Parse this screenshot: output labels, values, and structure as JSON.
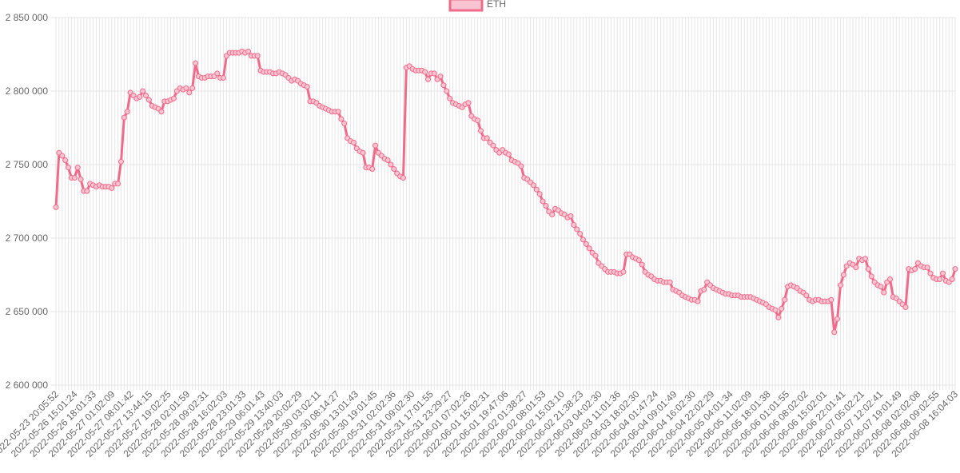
{
  "chart_data": {
    "type": "line",
    "title": "",
    "xlabel": "",
    "ylabel": "",
    "ylim": [
      2600000,
      2850000
    ],
    "y_ticks": [
      2600000,
      2650000,
      2700000,
      2750000,
      2800000,
      2850000
    ],
    "y_tick_labels": [
      "2 600 000",
      "2 650 000",
      "2 700 000",
      "2 750 000",
      "2 800 000",
      "2 850 000"
    ],
    "x_tick_labels": [
      "2022-05-23 20:05:52",
      "2022-05-26 15:01:24",
      "2022-05-26 18:01:33",
      "2022-05-27 01:02:09",
      "2022-05-27 08:01:42",
      "2022-05-27 13:44:15",
      "2022-05-27 19:02:25",
      "2022-05-28 02:01:59",
      "2022-05-28 09:02:31",
      "2022-05-28 16:02:03",
      "2022-05-28 23:01:33",
      "2022-05-29 06:01:43",
      "2022-05-29 13:40:03",
      "2022-05-29 20:02:29",
      "2022-05-30 03:02:11",
      "2022-05-30 08:14:27",
      "2022-05-30 13:01:43",
      "2022-05-30 19:01:45",
      "2022-05-31 02:02:36",
      "2022-05-31 09:02:30",
      "2022-05-31 17:01:55",
      "2022-05-31 23:29:27",
      "2022-06-01 07:02:26",
      "2022-06-01 15:02:31",
      "2022-06-01 19:47:06",
      "2022-06-02 01:38:27",
      "2022-06-02 08:01:53",
      "2022-06-02 15:03:10",
      "2022-06-02 21:38:23",
      "2022-06-03 04:02:30",
      "2022-06-03 11:01:36",
      "2022-06-03 18:02:30",
      "2022-06-04 01:47:24",
      "2022-06-04 09:01:49",
      "2022-06-04 16:02:30",
      "2022-06-04 22:02:29",
      "2022-06-05 04:01:34",
      "2022-06-05 11:02:09",
      "2022-06-05 18:01:38",
      "2022-06-06 01:01:55",
      "2022-06-06 08:02:02",
      "2022-06-06 15:02:01",
      "2022-06-06 22:01:41",
      "2022-06-07 05:02:21",
      "2022-06-07 12:02:41",
      "2022-06-07 19:01:49",
      "2022-06-08 02:02:08",
      "2022-06-08 09:02:55",
      "2022-06-08 16:04:03"
    ],
    "grid": true,
    "legend_position": "top-center",
    "series": [
      {
        "name": "ETH",
        "color": "#f06b8b",
        "fill": "#f9c4d1",
        "values": [
          2721000,
          2758000,
          2756000,
          2753000,
          2748000,
          2741000,
          2741000,
          2748000,
          2740000,
          2732000,
          2732000,
          2737000,
          2736000,
          2735000,
          2736000,
          2735000,
          2735000,
          2735000,
          2734000,
          2737000,
          2737000,
          2752000,
          2782000,
          2786000,
          2799000,
          2797000,
          2795000,
          2796000,
          2800000,
          2797000,
          2794000,
          2790000,
          2789000,
          2788000,
          2786000,
          2793000,
          2793000,
          2794000,
          2795000,
          2800000,
          2802000,
          2801000,
          2802000,
          2799000,
          2802000,
          2819000,
          2810000,
          2809000,
          2809000,
          2810000,
          2810000,
          2810000,
          2812000,
          2809000,
          2809000,
          2824000,
          2826000,
          2826000,
          2826000,
          2826000,
          2827000,
          2826000,
          2827000,
          2824000,
          2824000,
          2824000,
          2814000,
          2813000,
          2813000,
          2813000,
          2812000,
          2812000,
          2813000,
          2812000,
          2811000,
          2809000,
          2807000,
          2808000,
          2807000,
          2805000,
          2804000,
          2803000,
          2793000,
          2793000,
          2792000,
          2790000,
          2789000,
          2788000,
          2787000,
          2786000,
          2786000,
          2786000,
          2781000,
          2778000,
          2768000,
          2766000,
          2765000,
          2761000,
          2759000,
          2758000,
          2748000,
          2748000,
          2747000,
          2763000,
          2758000,
          2756000,
          2754000,
          2753000,
          2750000,
          2747000,
          2744000,
          2742000,
          2741000,
          2816000,
          2817000,
          2815000,
          2814000,
          2814000,
          2814000,
          2813000,
          2808000,
          2812000,
          2812000,
          2808000,
          2810000,
          2804000,
          2800000,
          2795000,
          2792000,
          2791000,
          2790000,
          2789000,
          2791000,
          2792000,
          2783000,
          2781000,
          2780000,
          2773000,
          2768000,
          2768000,
          2765000,
          2763000,
          2760000,
          2758000,
          2760000,
          2758000,
          2757000,
          2753000,
          2752000,
          2751000,
          2749000,
          2741000,
          2740000,
          2738000,
          2736000,
          2733000,
          2730000,
          2725000,
          2722000,
          2718000,
          2716000,
          2720000,
          2719000,
          2717000,
          2716000,
          2714000,
          2715000,
          2709000,
          2706000,
          2703000,
          2699000,
          2696000,
          2693000,
          2690000,
          2688000,
          2683000,
          2681000,
          2679000,
          2677000,
          2677000,
          2677000,
          2676000,
          2676000,
          2677000,
          2689000,
          2689000,
          2687000,
          2686000,
          2685000,
          2682000,
          2677000,
          2675000,
          2674000,
          2672000,
          2671000,
          2671000,
          2670000,
          2670000,
          2670000,
          2665000,
          2664000,
          2663000,
          2661000,
          2660000,
          2659000,
          2658000,
          2658000,
          2657000,
          2664000,
          2665000,
          2670000,
          2668000,
          2666000,
          2665000,
          2664000,
          2663000,
          2662000,
          2662000,
          2661000,
          2661000,
          2661000,
          2660000,
          2660000,
          2660000,
          2660000,
          2659000,
          2658000,
          2657000,
          2656000,
          2655000,
          2653000,
          2652000,
          2651000,
          2646000,
          2652000,
          2658000,
          2667000,
          2668000,
          2667000,
          2666000,
          2664000,
          2663000,
          2661000,
          2658000,
          2657000,
          2658000,
          2658000,
          2657000,
          2657000,
          2657000,
          2658000,
          2636000,
          2645000,
          2668000,
          2675000,
          2681000,
          2683000,
          2682000,
          2680000,
          2686000,
          2685000,
          2686000,
          2679000,
          2674000,
          2670000,
          2668000,
          2667000,
          2663000,
          2670000,
          2672000,
          2660000,
          2659000,
          2657000,
          2655000,
          2653000,
          2679000,
          2678000,
          2679000,
          2683000,
          2681000,
          2680000,
          2680000,
          2676000,
          2673000,
          2672000,
          2672000,
          2676000,
          2671000,
          2670000,
          2672000,
          2679000
        ]
      }
    ]
  }
}
